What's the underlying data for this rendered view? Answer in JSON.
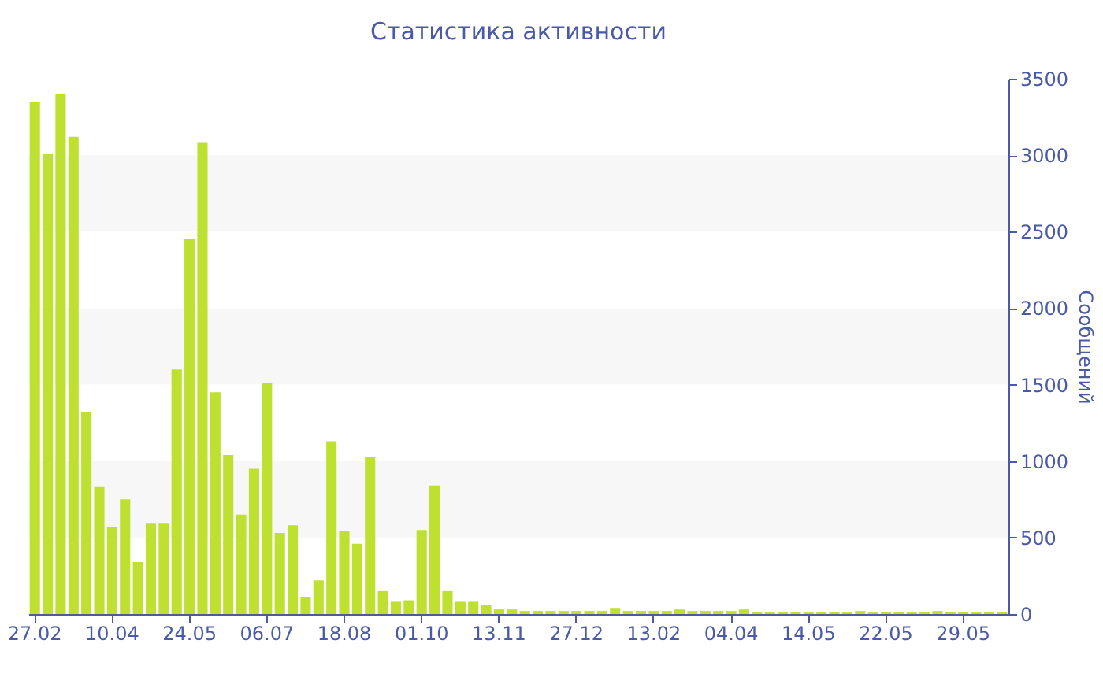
{
  "chart_data": {
    "type": "bar",
    "title": "Статистика активности",
    "ylabel": "Сообщений",
    "categories": [
      "27.02",
      null,
      null,
      null,
      null,
      null,
      "10.04",
      null,
      null,
      null,
      null,
      null,
      "24.05",
      null,
      null,
      null,
      null,
      null,
      "06.07",
      null,
      null,
      null,
      null,
      null,
      "18.08",
      null,
      null,
      null,
      null,
      null,
      "01.10",
      null,
      null,
      null,
      null,
      null,
      "13.11",
      null,
      null,
      null,
      null,
      null,
      "27.12",
      null,
      null,
      null,
      null,
      null,
      "13.02",
      null,
      null,
      null,
      null,
      null,
      "04.04",
      null,
      null,
      null,
      null,
      null,
      "14.05",
      null,
      null,
      null,
      null,
      null,
      "22.05",
      null,
      null,
      null,
      null,
      null,
      "29.05",
      null,
      null,
      null
    ],
    "values": [
      3350,
      3010,
      3400,
      3120,
      1320,
      830,
      570,
      750,
      340,
      590,
      590,
      1600,
      2450,
      3080,
      1450,
      1040,
      650,
      950,
      1510,
      530,
      580,
      110,
      220,
      1130,
      540,
      460,
      1030,
      150,
      80,
      90,
      550,
      840,
      150,
      80,
      80,
      60,
      30,
      30,
      20,
      20,
      20,
      20,
      20,
      20,
      20,
      40,
      20,
      20,
      20,
      20,
      30,
      20,
      20,
      20,
      20,
      30,
      10,
      10,
      10,
      10,
      10,
      10,
      10,
      10,
      20,
      10,
      10,
      10,
      10,
      10,
      20,
      10,
      10,
      10,
      10,
      10
    ],
    "color": "#bde031",
    "ylim": [
      0,
      3500
    ],
    "yticks": [
      0,
      500,
      1000,
      1500,
      2000,
      2500,
      3000,
      3500
    ],
    "bands": [
      {
        "axis": "y",
        "from": 500,
        "to": 1000,
        "color": "#f7f7f7"
      },
      {
        "axis": "y",
        "from": 1500,
        "to": 2000,
        "color": "#f7f7f7"
      },
      {
        "axis": "y",
        "from": 2500,
        "to": 3000,
        "color": "#f7f7f7"
      }
    ]
  }
}
